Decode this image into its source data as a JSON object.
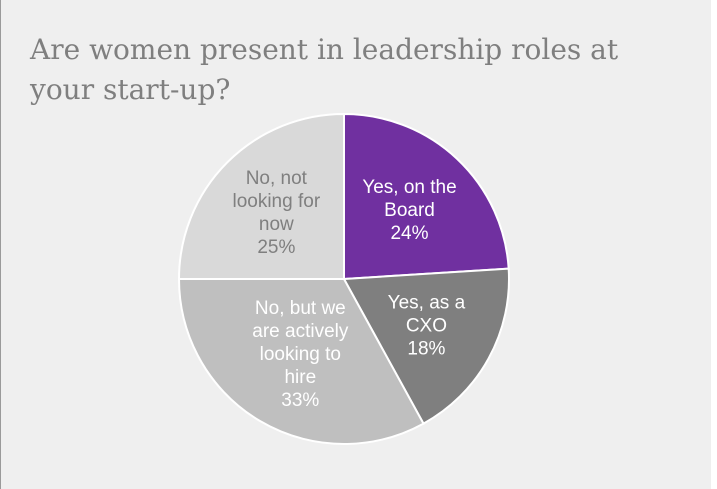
{
  "chart_data": {
    "type": "pie",
    "title": "Are women present in leadership roles at your start-up?",
    "slices": [
      {
        "label_lines": [
          "Yes, on the",
          "Board"
        ],
        "value_label": "24%",
        "value": 24,
        "color": "#7030a0",
        "text_color": "#ffffff"
      },
      {
        "label_lines": [
          "Yes, as a",
          "CXO"
        ],
        "value_label": "18%",
        "value": 18,
        "color": "#7f7f7f",
        "text_color": "#ffffff"
      },
      {
        "label_lines": [
          "No, but we",
          "are actively",
          "looking to",
          "hire"
        ],
        "value_label": "33%",
        "value": 33,
        "color": "#bfbfbf",
        "text_color": "#ffffff"
      },
      {
        "label_lines": [
          "No, not",
          "looking for",
          "now"
        ],
        "value_label": "25%",
        "value": 25,
        "color": "#d9d9d9",
        "text_color": "#7f7f7f"
      }
    ]
  }
}
